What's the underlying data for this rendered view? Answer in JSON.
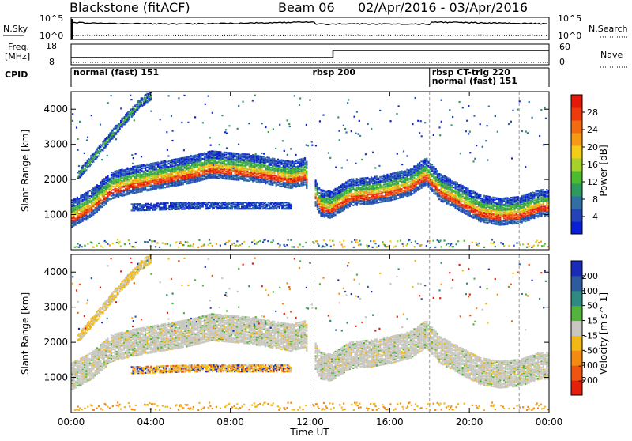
{
  "header": {
    "station": "Blackstone (fitACF)",
    "beam": "Beam 06",
    "date_range": "02/Apr/2016 - 03/Apr/2016"
  },
  "top_panels": {
    "nsky_label": "N.Sky",
    "nsearch_label": "N.Search",
    "freq_label_1": "Freq.",
    "freq_label_2": "[MHz]",
    "nave_label": "Nave",
    "cpid_label": "CPID",
    "nsky_ticks": [
      "10^5",
      "10^0"
    ],
    "nsearch_ticks": [
      "10^5",
      "10^0"
    ],
    "freq_ticks": [
      "18",
      "8"
    ],
    "nave_ticks": [
      "60",
      "0"
    ],
    "cpid_modes": [
      {
        "start_hr": 0.0,
        "label": "normal (fast) 151"
      },
      {
        "start_hr": 12.0,
        "label": "rbsp 200"
      },
      {
        "start_hr": 18.0,
        "label": "rbsp CT-trig 220"
      },
      {
        "start_hr": 18.0,
        "label": "normal (fast) 151"
      }
    ]
  },
  "power_colorbar": {
    "label": "Power [dB]",
    "ticks": [
      "28",
      "24",
      "20",
      "16",
      "12",
      "8",
      "4"
    ],
    "colors": [
      "#0b1fd6",
      "#2244b8",
      "#2f6fa2",
      "#2f9a5e",
      "#4dbb2f",
      "#a6d12a",
      "#f5cd16",
      "#f59a14",
      "#f36b10",
      "#ee3a0c",
      "#e31a0a"
    ]
  },
  "velocity_colorbar": {
    "label": "Velocity [m s^-1]",
    "ticks": [
      "200",
      "100",
      "50",
      "15",
      "-15",
      "-50",
      "-100",
      "-200"
    ],
    "colors": [
      "#1a2bb8",
      "#2e5ba0",
      "#2f8a80",
      "#52b43a",
      "#c8c8c0",
      "#f2b814",
      "#f38a12",
      "#ef5410",
      "#e61f0c"
    ]
  },
  "chart_data": {
    "type": "heatmap",
    "title": "Blackstone (fitACF) Beam 06 02/Apr/2016 - 03/Apr/2016",
    "xlabel": "Time UT",
    "ylabel": "Slant Range [km]",
    "xlim_hours": [
      0,
      24
    ],
    "ylim_km": [
      0,
      4500
    ],
    "x_ticks": [
      "00:00",
      "04:00",
      "08:00",
      "12:00",
      "16:00",
      "20:00",
      "00:00"
    ],
    "y_ticks": [
      "1000",
      "2000",
      "3000",
      "4000"
    ],
    "panels": [
      "Power [dB]",
      "Velocity [m s^-1]"
    ],
    "series": [
      {
        "kind": "main_band",
        "points": [
          {
            "t": 0.0,
            "km": 900
          },
          {
            "t": 1.0,
            "km": 1200
          },
          {
            "t": 2.0,
            "km": 1700
          },
          {
            "t": 3.0,
            "km": 1850
          },
          {
            "t": 4.0,
            "km": 1950
          },
          {
            "t": 5.0,
            "km": 2050
          },
          {
            "t": 6.0,
            "km": 2150
          },
          {
            "t": 7.0,
            "km": 2300
          },
          {
            "t": 8.0,
            "km": 2250
          },
          {
            "t": 9.0,
            "km": 2200
          },
          {
            "t": 10.0,
            "km": 2100
          },
          {
            "t": 11.0,
            "km": 2000
          },
          {
            "t": 11.7,
            "km": 2100
          },
          {
            "t": 12.5,
            "km": 1200
          },
          {
            "t": 13.0,
            "km": 1150
          },
          {
            "t": 14.0,
            "km": 1500
          },
          {
            "t": 15.0,
            "km": 1550
          },
          {
            "t": 16.0,
            "km": 1650
          },
          {
            "t": 17.0,
            "km": 1800
          },
          {
            "t": 17.8,
            "km": 2100
          },
          {
            "t": 18.5,
            "km": 1650
          },
          {
            "t": 19.5,
            "km": 1350
          },
          {
            "t": 20.5,
            "km": 1050
          },
          {
            "t": 21.5,
            "km": 950
          },
          {
            "t": 22.5,
            "km": 1000
          },
          {
            "t": 23.5,
            "km": 1200
          },
          {
            "t": 24.0,
            "km": 1200
          }
        ]
      },
      {
        "kind": "upper_branch",
        "points": [
          {
            "t": 0.3,
            "km": 2100
          },
          {
            "t": 1.5,
            "km": 2900
          },
          {
            "t": 2.5,
            "km": 3600
          },
          {
            "t": 3.5,
            "km": 4200
          },
          {
            "t": 4.0,
            "km": 4400
          }
        ]
      },
      {
        "kind": "lower_band",
        "points": [
          {
            "t": 3.0,
            "km": 1200
          },
          {
            "t": 6.0,
            "km": 1250
          },
          {
            "t": 9.0,
            "km": 1250
          },
          {
            "t": 11.0,
            "km": 1250
          }
        ]
      }
    ]
  }
}
